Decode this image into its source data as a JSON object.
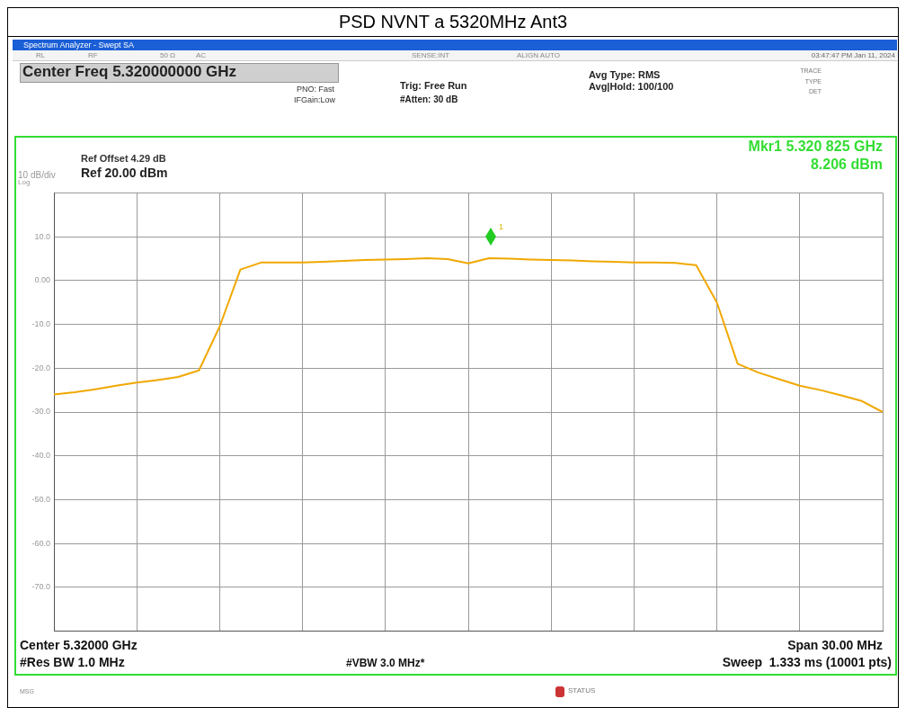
{
  "chart_data": {
    "type": "line",
    "title": "PSD NVNT a 5320MHz Ant3",
    "categories": [
      null,
      null,
      null,
      null,
      null,
      null,
      null,
      null,
      null,
      null,
      null,
      null,
      null,
      null,
      null,
      null,
      null,
      null,
      null,
      null,
      null,
      null,
      null,
      null,
      null,
      null,
      null,
      null,
      null,
      null,
      null,
      null,
      null,
      null,
      null,
      null,
      null,
      null,
      null,
      null,
      null
    ],
    "ylim": [
      -80,
      20
    ],
    "yticks": [
      {
        "value": -80,
        "label": null
      },
      {
        "value": -70,
        "label": "-70.0"
      },
      {
        "value": -60,
        "label": "-60.0"
      },
      {
        "value": -50,
        "label": "-50.0"
      },
      {
        "value": -40,
        "label": "-40.0"
      },
      {
        "value": -30,
        "label": "-30.0"
      },
      {
        "value": -20,
        "label": "-20.0"
      },
      {
        "value": -10,
        "label": "-10.0"
      },
      {
        "value": 0,
        "label": "0.00"
      },
      {
        "value": 10,
        "label": "10.0"
      },
      {
        "value": 20,
        "label": null
      }
    ],
    "tick_labels": "y",
    "grid": true,
    "legend": false,
    "marker": "none",
    "line_style": "solid",
    "series": [
      {
        "color": "#f0a800",
        "values": [
          -26,
          -25.5,
          -24.8,
          -24,
          -23.3,
          -22.7,
          -22,
          -20.5,
          -10.5,
          2.5,
          4.1,
          4.1,
          4.1,
          4.3,
          4.5,
          4.7,
          4.8,
          4.9,
          5.1,
          4.9,
          3.9,
          5.1,
          5,
          4.8,
          4.7,
          4.6,
          4.4,
          4.3,
          4.1,
          4.1,
          4,
          3.5,
          -5,
          -19,
          -21,
          -22.5,
          -24,
          -25,
          -26.2,
          -27.5,
          -30
        ]
      }
    ],
    "annotations": [
      "Spectrum Analyzer - Swept SA",
      "RL",
      "RF",
      "50 Ω",
      "AC",
      "SENSE:INT",
      "ALIGN AUTO",
      "03:47:47 PM Jan 11, 2024",
      "Center Freq 5.320000000 GHz",
      "PNO: Fast",
      "IFGain:Low",
      "Trig: Free Run",
      "#Atten: 30 dB",
      "Avg Type: RMS",
      "Avg|Hold: 100/100",
      "TRACE",
      "TYPE",
      "DET",
      "Ref Offset 4.29 dB",
      "Ref 20.00 dBm",
      "10 dB/div",
      "Log",
      "Mkr1 5.320 825 GHz",
      "8.206 dBm",
      "Center 5.32000 GHz",
      "#Res BW 1.0 MHz",
      "#VBW 3.0 MHz*",
      "Span 30.00 MHz",
      "Sweep  1.333 ms (10001 pts)",
      "MSG",
      "STATUS",
      "1"
    ]
  }
}
